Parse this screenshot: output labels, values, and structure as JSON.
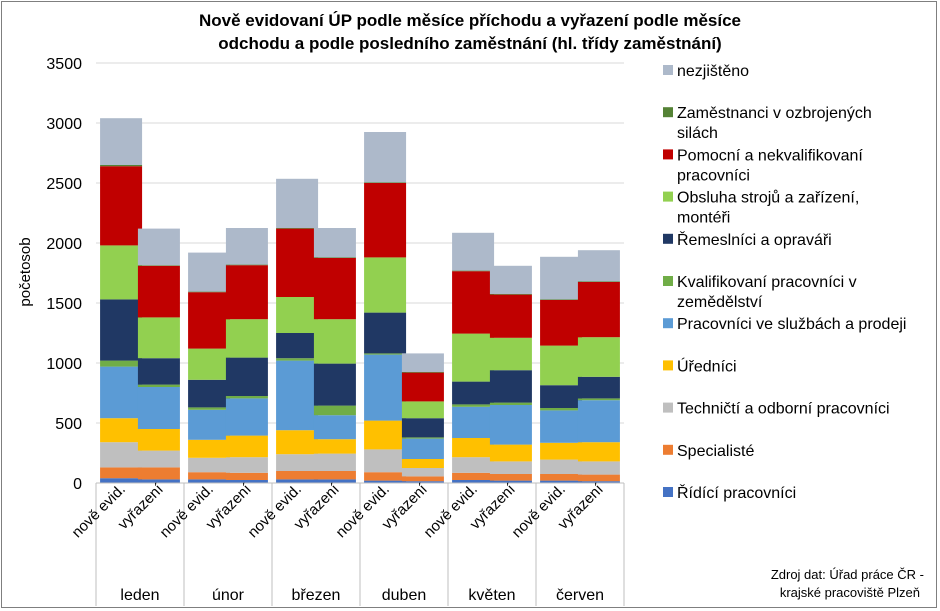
{
  "chart_data": {
    "type": "bar",
    "stacked": true,
    "title_lines": [
      "Nově evidovaní ÚP podle měsíce příchodu a vyřazení podle měsíce",
      "odchodu a podle posledního zaměstnání (hl. třídy zaměstnání)"
    ],
    "ylabel": "početosob",
    "ylim": [
      0,
      3500
    ],
    "yticks": [
      "0",
      "500",
      "1000",
      "1500",
      "2000",
      "2500",
      "3000",
      "3500"
    ],
    "grid": true,
    "legend_position": "right",
    "groups": [
      "leden",
      "únor",
      "březen",
      "duben",
      "květen",
      "červen"
    ],
    "sub_labels": [
      "nově evid.",
      "vyřazení"
    ],
    "source_lines": [
      "Zdroj dat: Úřad práce ČR -",
      "krajské pracoviště Plzeň"
    ],
    "series": [
      {
        "name": "Řídící pracovníci",
        "color": "#4472c4",
        "values": [
          [
            40,
            30
          ],
          [
            30,
            25
          ],
          [
            30,
            30
          ],
          [
            20,
            15
          ],
          [
            25,
            20
          ],
          [
            20,
            15
          ]
        ]
      },
      {
        "name": "Specialisté",
        "color": "#ed7d31",
        "values": [
          [
            90,
            100
          ],
          [
            60,
            60
          ],
          [
            70,
            70
          ],
          [
            70,
            40
          ],
          [
            60,
            55
          ],
          [
            55,
            55
          ]
        ]
      },
      {
        "name": "Techničtí a odborní pracovníci",
        "color": "#bfbfbf",
        "values": [
          [
            210,
            140
          ],
          [
            120,
            130
          ],
          [
            140,
            145
          ],
          [
            190,
            70
          ],
          [
            130,
            105
          ],
          [
            120,
            110
          ]
        ]
      },
      {
        "name": "Úředníci",
        "color": "#ffc000",
        "values": [
          [
            200,
            180
          ],
          [
            150,
            180
          ],
          [
            200,
            120
          ],
          [
            240,
            75
          ],
          [
            160,
            140
          ],
          [
            140,
            160
          ]
        ]
      },
      {
        "name": "Pracovníci ve službách a prodeji",
        "color": "#5b9bd5",
        "values": [
          [
            430,
            350
          ],
          [
            250,
            310
          ],
          [
            580,
            200
          ],
          [
            550,
            170
          ],
          [
            260,
            330
          ],
          [
            270,
            350
          ]
        ]
      },
      {
        "name": "Kvalifikovaní pracovníci v zemědělství",
        "color": "#70ad47",
        "values": [
          [
            50,
            20
          ],
          [
            20,
            20
          ],
          [
            20,
            80
          ],
          [
            10,
            10
          ],
          [
            20,
            20
          ],
          [
            20,
            15
          ]
        ]
      },
      {
        "name": "Řemeslníci a opraváři",
        "color": "#203864",
        "values": [
          [
            510,
            220
          ],
          [
            230,
            320
          ],
          [
            210,
            350
          ],
          [
            340,
            160
          ],
          [
            190,
            270
          ],
          [
            190,
            180
          ]
        ]
      },
      {
        "name": "Obsluha strojů a zařízení, montéři",
        "color": "#92d050",
        "values": [
          [
            450,
            340
          ],
          [
            260,
            320
          ],
          [
            300,
            370
          ],
          [
            460,
            140
          ],
          [
            400,
            270
          ],
          [
            330,
            330
          ]
        ]
      },
      {
        "name": "Pomocní a nekvalifikovaní pracovníci",
        "color": "#c00000",
        "values": [
          [
            660,
            430
          ],
          [
            470,
            450
          ],
          [
            570,
            510
          ],
          [
            620,
            240
          ],
          [
            520,
            360
          ],
          [
            380,
            460
          ]
        ]
      },
      {
        "name": "Zaměstnanci v ozbrojených silách",
        "color": "#548235",
        "values": [
          [
            10,
            5
          ],
          [
            5,
            5
          ],
          [
            5,
            5
          ],
          [
            5,
            5
          ],
          [
            5,
            5
          ],
          [
            5,
            5
          ]
        ]
      },
      {
        "name": "nezjištěno",
        "color": "#adb9ca",
        "values": [
          [
            390,
            305
          ],
          [
            325,
            305
          ],
          [
            410,
            245
          ],
          [
            420,
            155
          ],
          [
            315,
            235
          ],
          [
            355,
            260
          ]
        ]
      }
    ]
  }
}
